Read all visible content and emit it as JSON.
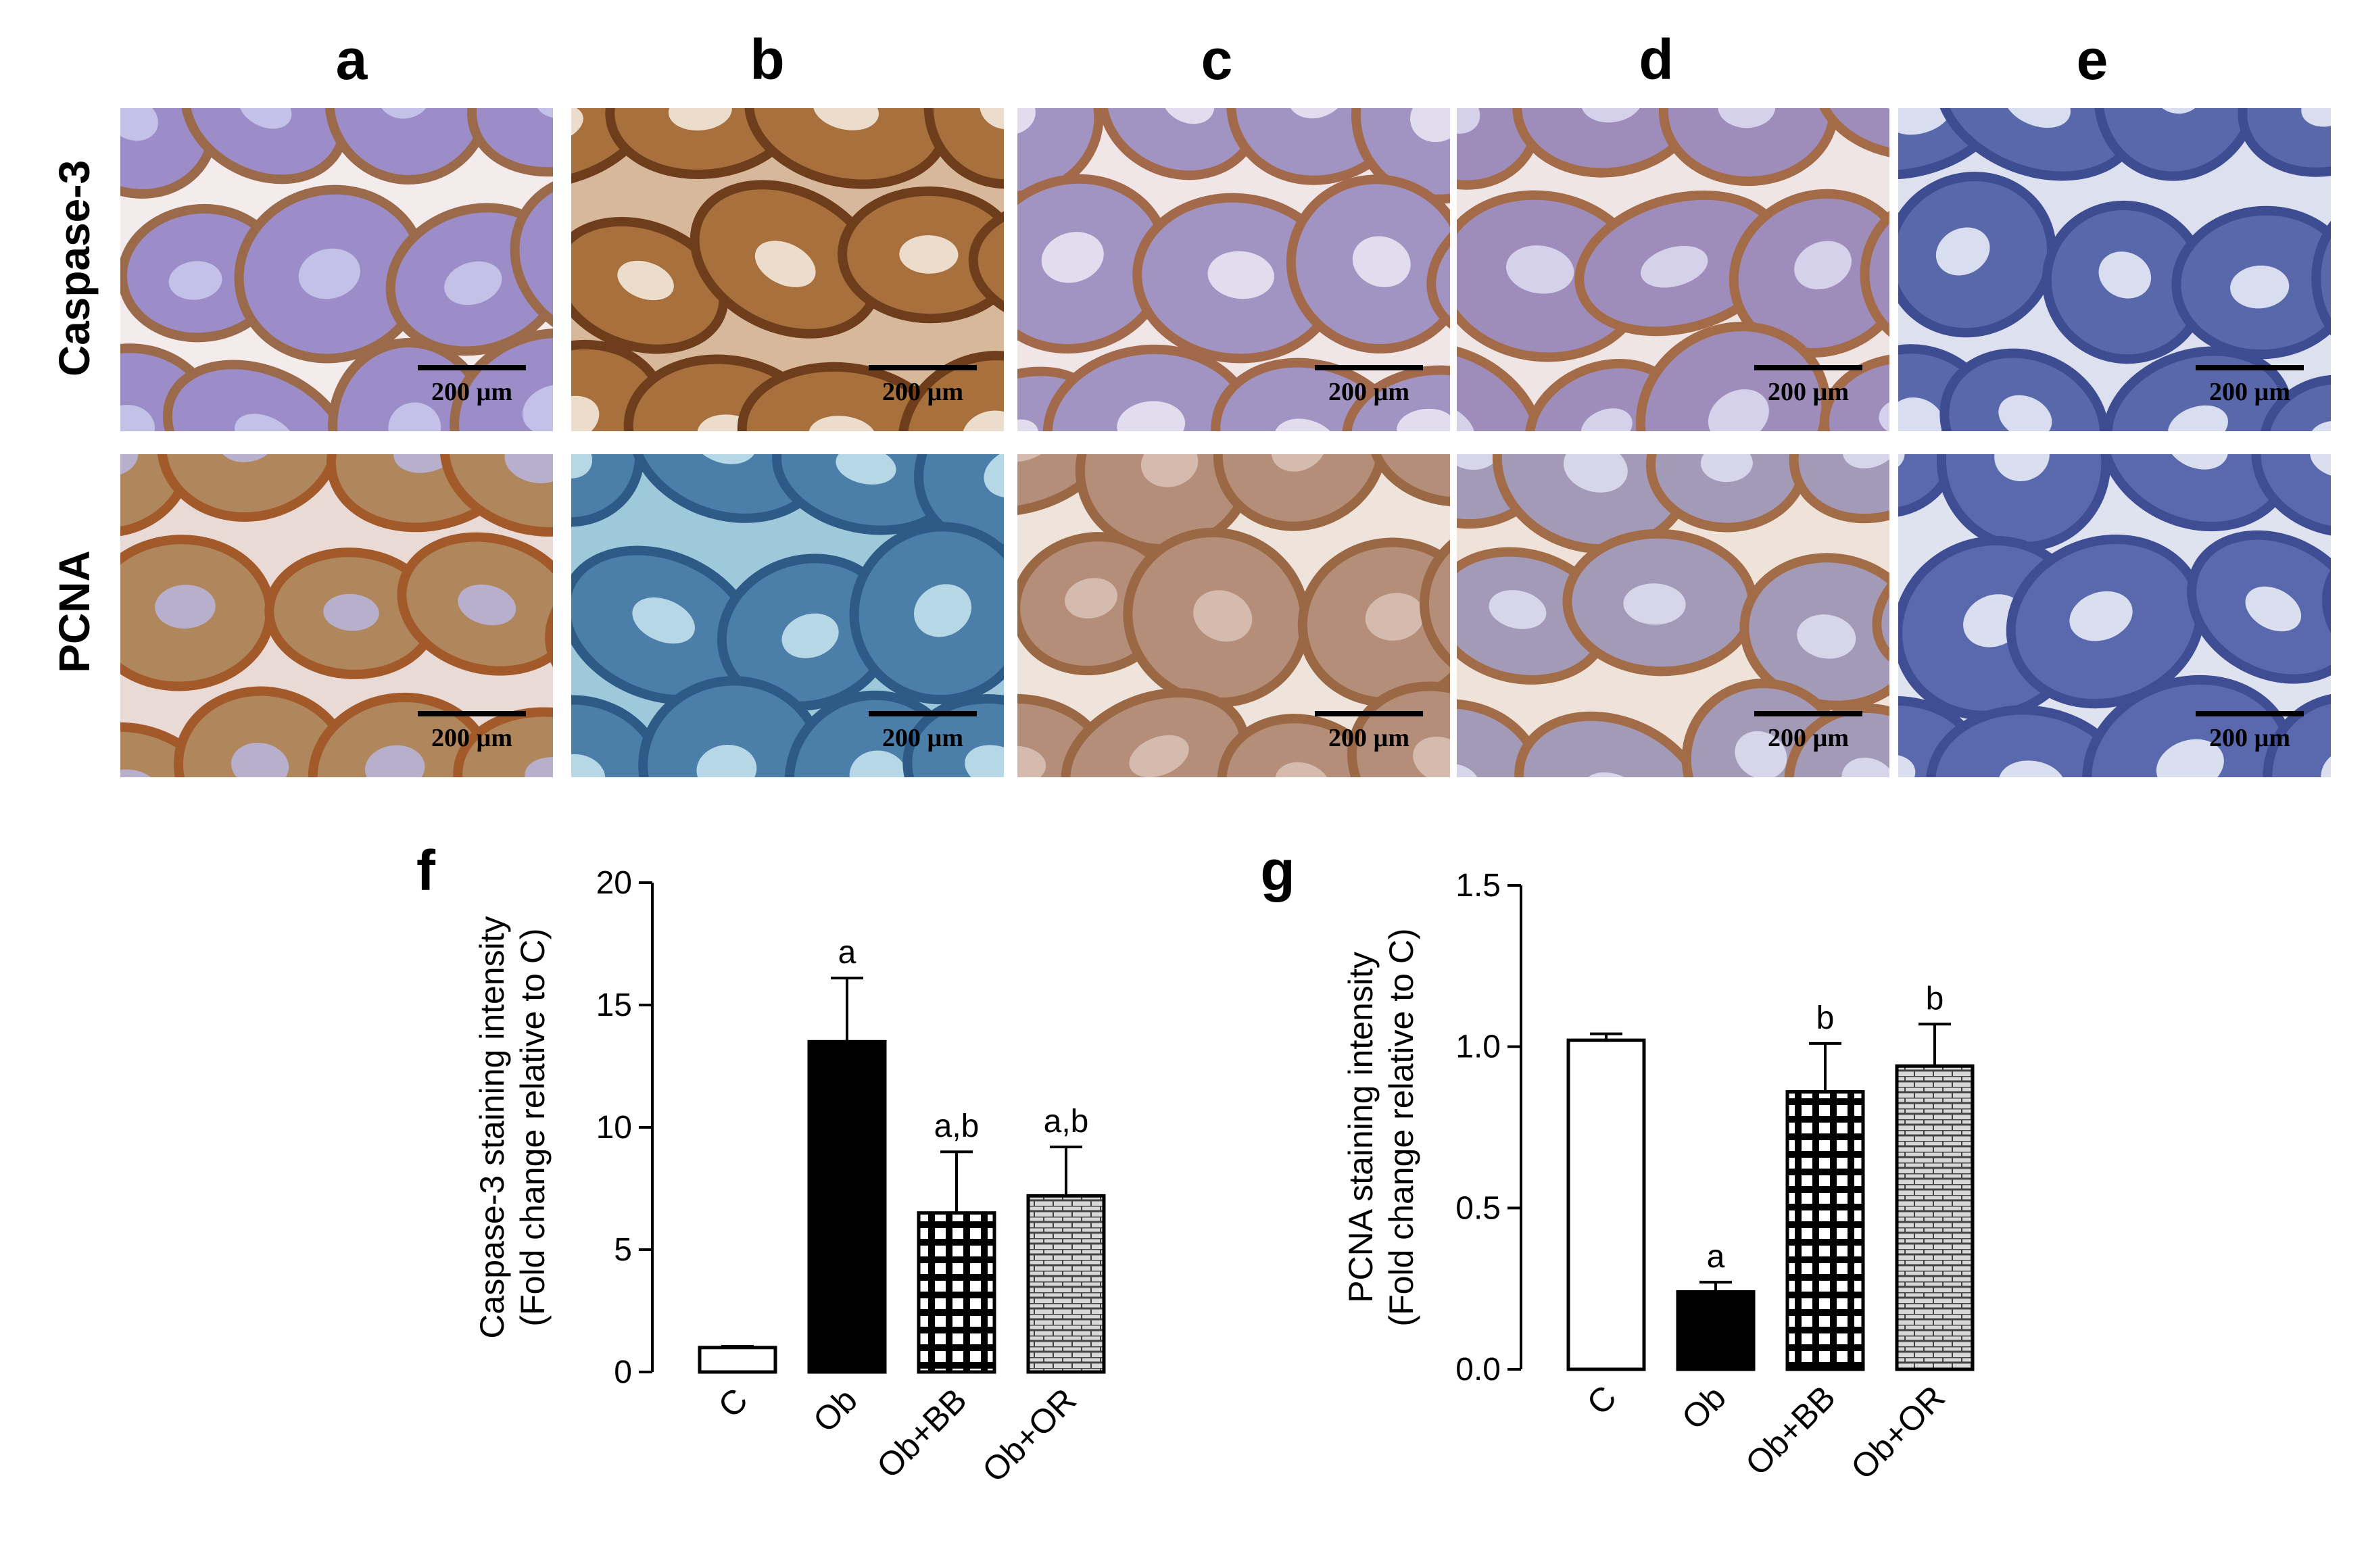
{
  "columns": [
    {
      "letter": "a"
    },
    {
      "letter": "b"
    },
    {
      "letter": "c"
    },
    {
      "letter": "d"
    },
    {
      "letter": "e"
    }
  ],
  "rows": [
    {
      "label": "Caspase-3"
    },
    {
      "label": "PCNA"
    }
  ],
  "scale_bar_text": "200 µm",
  "micrographs": [
    {
      "row": 0,
      "col": 0,
      "bg": "#f4ecec",
      "tubule": "#9c8cc8",
      "rim": "#9a6a4a",
      "lumen": "#c8c6ea"
    },
    {
      "row": 0,
      "col": 1,
      "bg": "#d8b89a",
      "tubule": "#a8703c",
      "rim": "#6e3e1c",
      "lumen": "#f2e8dc"
    },
    {
      "row": 0,
      "col": 2,
      "bg": "#f0e6e8",
      "tubule": "#a294c2",
      "rim": "#a26a4a",
      "lumen": "#e8e4f4"
    },
    {
      "row": 0,
      "col": 3,
      "bg": "#efe5e4",
      "tubule": "#9e8cba",
      "rim": "#a46b48",
      "lumen": "#dcd8f0"
    },
    {
      "row": 0,
      "col": 4,
      "bg": "#dde1ef",
      "tubule": "#5968ab",
      "rim": "#3e4c92",
      "lumen": "#e6eaf6"
    },
    {
      "row": 1,
      "col": 0,
      "bg": "#eadad6",
      "tubule": "#b0875c",
      "rim": "#a35a2a",
      "lumen": "#b8b4d8"
    },
    {
      "row": 1,
      "col": 1,
      "bg": "#9ec9da",
      "tubule": "#4c7eaa",
      "rim": "#2e5a88",
      "lumen": "#c2e2ec"
    },
    {
      "row": 1,
      "col": 2,
      "bg": "#efe4dc",
      "tubule": "#b48e78",
      "rim": "#9a6844",
      "lumen": "#d8c0b4"
    },
    {
      "row": 1,
      "col": 3,
      "bg": "#efe2d8",
      "tubule": "#a39ab8",
      "rim": "#a36c48",
      "lumen": "#dcdcee"
    },
    {
      "row": 1,
      "col": 4,
      "bg": "#dfe3f0",
      "tubule": "#5a69ad",
      "rim": "#3f4e94",
      "lumen": "#e8ecf7"
    }
  ],
  "charts": [
    {
      "panel_letter": "f",
      "ylabel_line1": "Caspase-3 staining intensity",
      "ylabel_line2": "(Fold change relative to C)",
      "tick_labels": [
        "0",
        "5",
        "10",
        "15",
        "20"
      ],
      "category_labels": [
        "C",
        "Ob",
        "Ob+BB",
        "Ob+OR"
      ],
      "significance": [
        "",
        "a",
        "a,b",
        "a,b"
      ]
    },
    {
      "panel_letter": "g",
      "ylabel_line1": "PCNA staining intensity",
      "ylabel_line2": "(Fold change relative to C)",
      "tick_labels": [
        "0.0",
        "0.5",
        "1.0",
        "1.5"
      ],
      "category_labels": [
        "C",
        "Ob",
        "Ob+BB",
        "Ob+OR"
      ],
      "significance": [
        "",
        "a",
        "b",
        "b"
      ]
    }
  ],
  "chart_data": [
    {
      "type": "bar",
      "categories": [
        "C",
        "Ob",
        "Ob+BB",
        "Ob+OR"
      ],
      "values": [
        1.0,
        13.5,
        6.5,
        7.2
      ],
      "errors": [
        0.05,
        2.6,
        2.5,
        2.0
      ],
      "fills": [
        "white",
        "black",
        "grid",
        "brick"
      ],
      "significance": [
        "",
        "a",
        "a,b",
        "a,b"
      ],
      "ylabel": "Caspase-3 staining intensity (Fold change relative to C)",
      "ylim": [
        0,
        20
      ],
      "yticks": [
        0,
        5,
        10,
        15,
        20
      ]
    },
    {
      "type": "bar",
      "categories": [
        "C",
        "Ob",
        "Ob+BB",
        "Ob+OR"
      ],
      "values": [
        1.02,
        0.24,
        0.86,
        0.94
      ],
      "errors": [
        0.02,
        0.03,
        0.15,
        0.13
      ],
      "fills": [
        "white",
        "black",
        "grid",
        "brick"
      ],
      "significance": [
        "",
        "a",
        "b",
        "b"
      ],
      "ylabel": "PCNA staining intensity (Fold change relative to C)",
      "ylim": [
        0,
        1.5
      ],
      "yticks": [
        0,
        0.5,
        1.0,
        1.5
      ]
    }
  ]
}
